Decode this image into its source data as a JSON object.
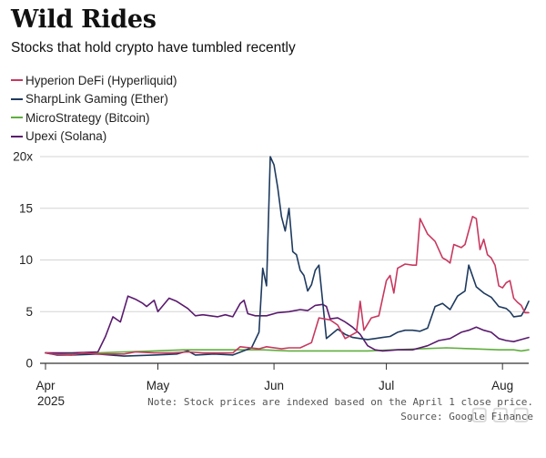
{
  "header": {
    "title": "Wild Rides",
    "subtitle": "Stocks that hold crypto have tumbled recently"
  },
  "footer": {
    "note": "Note: Stock prices are indexed based on the April 1 close price.",
    "source": "Source: Google Finance"
  },
  "colors": {
    "Hyperion DeFi (Hyperliquid)": "#c8385f",
    "SharpLink Gaming (Ether)": "#1e3a5f",
    "MicroStrategy (Bitcoin)": "#5fae3e",
    "Upexi (Solana)": "#5a1a6e"
  },
  "chart_data": {
    "type": "line",
    "title": "Wild Rides",
    "subtitle": "Stocks that hold crypto have tumbled recently",
    "xlabel": "",
    "ylabel": "",
    "x_range": [
      "2025-04-01",
      "2025-08-08"
    ],
    "ylim": [
      0,
      20
    ],
    "y_ticks": [
      0,
      5,
      10,
      15,
      20
    ],
    "y_tick_labels": [
      "0",
      "5",
      "10",
      "15",
      "20x"
    ],
    "x_ticks": [
      {
        "date": "2025-04-01",
        "label": "Apr",
        "sublabel": "2025"
      },
      {
        "date": "2025-05-01",
        "label": "May",
        "sublabel": ""
      },
      {
        "date": "2025-06-01",
        "label": "Jun",
        "sublabel": ""
      },
      {
        "date": "2025-07-01",
        "label": "Jul",
        "sublabel": ""
      },
      {
        "date": "2025-08-01",
        "label": "Aug",
        "sublabel": ""
      }
    ],
    "grid": "horizontal",
    "legend_position": "top-left",
    "series": [
      {
        "name": "Hyperion DeFi (Hyperliquid)",
        "points": [
          [
            "2025-04-01",
            1.0
          ],
          [
            "2025-04-03",
            0.9
          ],
          [
            "2025-04-08",
            0.8
          ],
          [
            "2025-04-11",
            1.0
          ],
          [
            "2025-04-15",
            0.9
          ],
          [
            "2025-04-22",
            0.9
          ],
          [
            "2025-04-25",
            1.1
          ],
          [
            "2025-04-30",
            1.0
          ],
          [
            "2025-05-05",
            1.0
          ],
          [
            "2025-05-09",
            1.1
          ],
          [
            "2025-05-13",
            1.0
          ],
          [
            "2025-05-16",
            1.0
          ],
          [
            "2025-05-21",
            1.0
          ],
          [
            "2025-05-23",
            1.6
          ],
          [
            "2025-05-28",
            1.4
          ],
          [
            "2025-05-30",
            1.6
          ],
          [
            "2025-06-03",
            1.4
          ],
          [
            "2025-06-05",
            1.5
          ],
          [
            "2025-06-08",
            1.5
          ],
          [
            "2025-06-11",
            2.0
          ],
          [
            "2025-06-13",
            4.4
          ],
          [
            "2025-06-16",
            4.2
          ],
          [
            "2025-06-18",
            3.7
          ],
          [
            "2025-06-20",
            2.4
          ],
          [
            "2025-06-23",
            3.0
          ],
          [
            "2025-06-24",
            6.0
          ],
          [
            "2025-06-25",
            3.2
          ],
          [
            "2025-06-27",
            4.4
          ],
          [
            "2025-06-29",
            4.6
          ],
          [
            "2025-07-01",
            8.0
          ],
          [
            "2025-07-02",
            8.5
          ],
          [
            "2025-07-03",
            6.8
          ],
          [
            "2025-07-04",
            9.2
          ],
          [
            "2025-07-06",
            9.6
          ],
          [
            "2025-07-08",
            9.5
          ],
          [
            "2025-07-09",
            9.5
          ],
          [
            "2025-07-10",
            14.0
          ],
          [
            "2025-07-12",
            12.5
          ],
          [
            "2025-07-14",
            11.8
          ],
          [
            "2025-07-16",
            10.2
          ],
          [
            "2025-07-17",
            10.0
          ],
          [
            "2025-07-18",
            9.7
          ],
          [
            "2025-07-19",
            11.5
          ],
          [
            "2025-07-21",
            11.2
          ],
          [
            "2025-07-22",
            11.5
          ],
          [
            "2025-07-24",
            14.2
          ],
          [
            "2025-07-25",
            14.0
          ],
          [
            "2025-07-26",
            11.0
          ],
          [
            "2025-07-27",
            12.0
          ],
          [
            "2025-07-28",
            10.5
          ],
          [
            "2025-07-29",
            10.2
          ],
          [
            "2025-07-30",
            9.5
          ],
          [
            "2025-07-31",
            7.5
          ],
          [
            "2025-08-01",
            7.3
          ],
          [
            "2025-08-02",
            7.8
          ],
          [
            "2025-08-03",
            8.0
          ],
          [
            "2025-08-04",
            6.3
          ],
          [
            "2025-08-05",
            5.9
          ],
          [
            "2025-08-06",
            5.6
          ],
          [
            "2025-08-07",
            4.9
          ],
          [
            "2025-08-08",
            4.9
          ]
        ]
      },
      {
        "name": "SharpLink Gaming (Ether)",
        "points": [
          [
            "2025-04-01",
            1.0
          ],
          [
            "2025-04-04",
            0.8
          ],
          [
            "2025-04-08",
            0.8
          ],
          [
            "2025-04-15",
            0.9
          ],
          [
            "2025-04-22",
            0.7
          ],
          [
            "2025-04-30",
            0.8
          ],
          [
            "2025-05-06",
            0.9
          ],
          [
            "2025-05-09",
            1.2
          ],
          [
            "2025-05-11",
            0.8
          ],
          [
            "2025-05-16",
            0.9
          ],
          [
            "2025-05-21",
            0.8
          ],
          [
            "2025-05-26",
            1.5
          ],
          [
            "2025-05-28",
            3.0
          ],
          [
            "2025-05-29",
            9.2
          ],
          [
            "2025-05-30",
            7.5
          ],
          [
            "2025-05-31",
            20.0
          ],
          [
            "2025-06-01",
            19.2
          ],
          [
            "2025-06-02",
            17.0
          ],
          [
            "2025-06-03",
            14.2
          ],
          [
            "2025-06-04",
            12.8
          ],
          [
            "2025-06-05",
            15.0
          ],
          [
            "2025-06-06",
            10.8
          ],
          [
            "2025-06-07",
            10.5
          ],
          [
            "2025-06-08",
            9.0
          ],
          [
            "2025-06-09",
            8.5
          ],
          [
            "2025-06-10",
            7.0
          ],
          [
            "2025-06-11",
            7.6
          ],
          [
            "2025-06-12",
            9.0
          ],
          [
            "2025-06-13",
            9.5
          ],
          [
            "2025-06-15",
            2.4
          ],
          [
            "2025-06-17",
            3.0
          ],
          [
            "2025-06-18",
            3.3
          ],
          [
            "2025-06-20",
            2.8
          ],
          [
            "2025-06-22",
            2.5
          ],
          [
            "2025-06-24",
            2.4
          ],
          [
            "2025-06-26",
            2.3
          ],
          [
            "2025-06-28",
            2.4
          ],
          [
            "2025-06-30",
            2.5
          ],
          [
            "2025-07-02",
            2.6
          ],
          [
            "2025-07-04",
            3.0
          ],
          [
            "2025-07-06",
            3.2
          ],
          [
            "2025-07-08",
            3.2
          ],
          [
            "2025-07-10",
            3.1
          ],
          [
            "2025-07-12",
            3.4
          ],
          [
            "2025-07-14",
            5.5
          ],
          [
            "2025-07-16",
            5.8
          ],
          [
            "2025-07-18",
            5.2
          ],
          [
            "2025-07-20",
            6.5
          ],
          [
            "2025-07-22",
            7.0
          ],
          [
            "2025-07-23",
            9.5
          ],
          [
            "2025-07-25",
            7.4
          ],
          [
            "2025-07-27",
            6.8
          ],
          [
            "2025-07-29",
            6.4
          ],
          [
            "2025-07-31",
            5.5
          ],
          [
            "2025-08-02",
            5.3
          ],
          [
            "2025-08-03",
            5.0
          ],
          [
            "2025-08-04",
            4.5
          ],
          [
            "2025-08-06",
            4.6
          ],
          [
            "2025-08-07",
            5.2
          ],
          [
            "2025-08-08",
            6.0
          ]
        ]
      },
      {
        "name": "MicroStrategy (Bitcoin)",
        "points": [
          [
            "2025-04-01",
            1.0
          ],
          [
            "2025-04-08",
            0.9
          ],
          [
            "2025-04-15",
            1.0
          ],
          [
            "2025-04-22",
            1.1
          ],
          [
            "2025-04-30",
            1.2
          ],
          [
            "2025-05-08",
            1.3
          ],
          [
            "2025-05-15",
            1.3
          ],
          [
            "2025-05-22",
            1.3
          ],
          [
            "2025-05-29",
            1.3
          ],
          [
            "2025-06-05",
            1.2
          ],
          [
            "2025-06-12",
            1.2
          ],
          [
            "2025-06-19",
            1.2
          ],
          [
            "2025-06-26",
            1.2
          ],
          [
            "2025-07-03",
            1.3
          ],
          [
            "2025-07-10",
            1.4
          ],
          [
            "2025-07-17",
            1.5
          ],
          [
            "2025-07-24",
            1.4
          ],
          [
            "2025-07-31",
            1.3
          ],
          [
            "2025-08-04",
            1.3
          ],
          [
            "2025-08-06",
            1.2
          ],
          [
            "2025-08-08",
            1.3
          ]
        ]
      },
      {
        "name": "Upexi (Solana)",
        "points": [
          [
            "2025-04-01",
            1.0
          ],
          [
            "2025-04-08",
            1.0
          ],
          [
            "2025-04-15",
            1.1
          ],
          [
            "2025-04-17",
            2.6
          ],
          [
            "2025-04-19",
            4.5
          ],
          [
            "2025-04-21",
            4.0
          ],
          [
            "2025-04-23",
            6.5
          ],
          [
            "2025-04-25",
            6.2
          ],
          [
            "2025-04-27",
            5.8
          ],
          [
            "2025-04-28",
            5.5
          ],
          [
            "2025-04-30",
            6.1
          ],
          [
            "2025-05-01",
            5.0
          ],
          [
            "2025-05-04",
            6.3
          ],
          [
            "2025-05-06",
            6.0
          ],
          [
            "2025-05-09",
            5.3
          ],
          [
            "2025-05-11",
            4.6
          ],
          [
            "2025-05-13",
            4.7
          ],
          [
            "2025-05-15",
            4.6
          ],
          [
            "2025-05-17",
            4.5
          ],
          [
            "2025-05-19",
            4.7
          ],
          [
            "2025-05-21",
            4.5
          ],
          [
            "2025-05-23",
            5.8
          ],
          [
            "2025-05-24",
            6.1
          ],
          [
            "2025-05-25",
            4.8
          ],
          [
            "2025-05-27",
            4.6
          ],
          [
            "2025-05-30",
            4.6
          ],
          [
            "2025-06-02",
            4.9
          ],
          [
            "2025-06-05",
            5.0
          ],
          [
            "2025-06-08",
            5.2
          ],
          [
            "2025-06-10",
            5.1
          ],
          [
            "2025-06-12",
            5.6
          ],
          [
            "2025-06-14",
            5.7
          ],
          [
            "2025-06-15",
            5.5
          ],
          [
            "2025-06-16",
            4.3
          ],
          [
            "2025-06-18",
            4.4
          ],
          [
            "2025-06-20",
            4.0
          ],
          [
            "2025-06-22",
            3.5
          ],
          [
            "2025-06-24",
            2.8
          ],
          [
            "2025-06-26",
            1.7
          ],
          [
            "2025-06-28",
            1.3
          ],
          [
            "2025-06-30",
            1.2
          ],
          [
            "2025-07-04",
            1.3
          ],
          [
            "2025-07-08",
            1.3
          ],
          [
            "2025-07-12",
            1.7
          ],
          [
            "2025-07-15",
            2.2
          ],
          [
            "2025-07-18",
            2.4
          ],
          [
            "2025-07-21",
            3.0
          ],
          [
            "2025-07-23",
            3.2
          ],
          [
            "2025-07-25",
            3.5
          ],
          [
            "2025-07-27",
            3.2
          ],
          [
            "2025-07-29",
            3.0
          ],
          [
            "2025-07-31",
            2.4
          ],
          [
            "2025-08-02",
            2.2
          ],
          [
            "2025-08-04",
            2.1
          ],
          [
            "2025-08-06",
            2.3
          ],
          [
            "2025-08-08",
            2.5
          ]
        ]
      }
    ]
  }
}
